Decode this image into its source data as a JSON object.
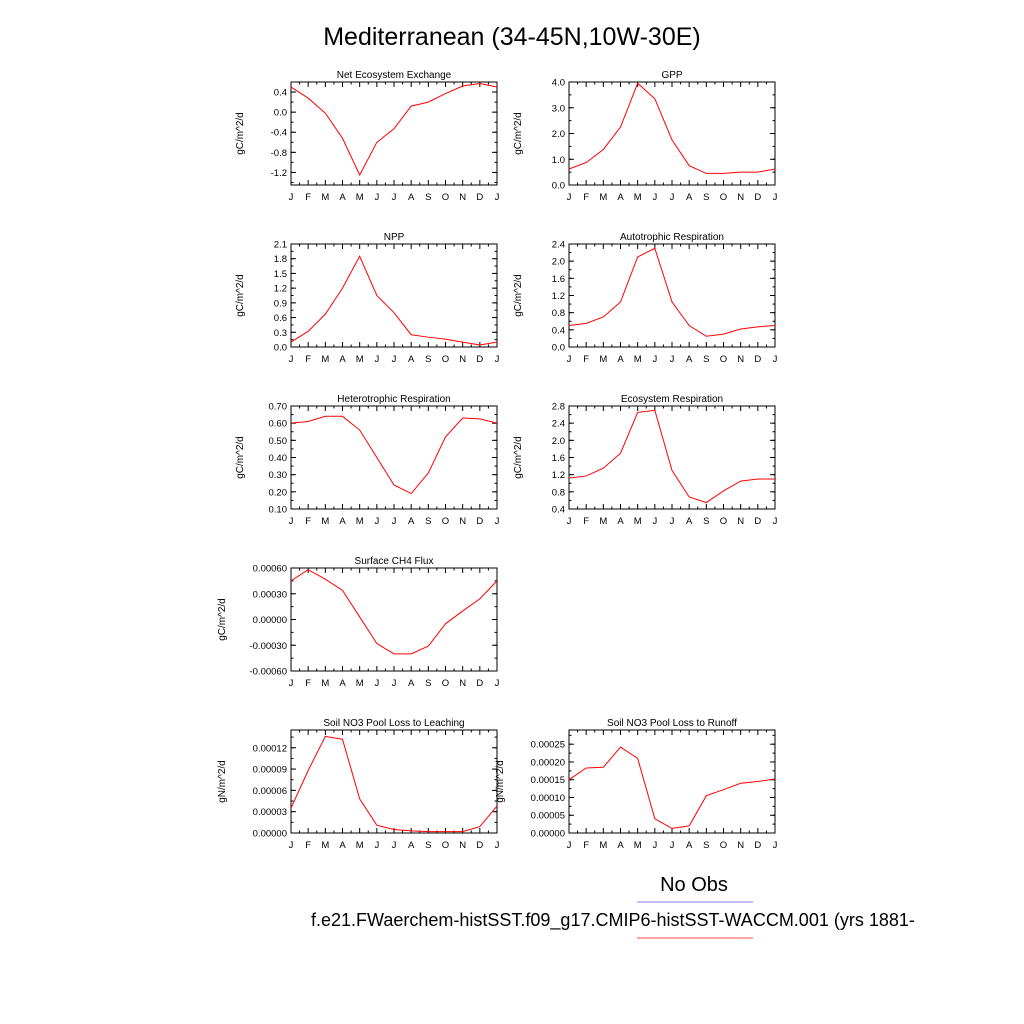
{
  "title": "Mediterranean (34-45N,10W-30E)",
  "legend": {
    "label": "No Obs",
    "obs_color": "#7b7bff",
    "model_color": "#ff4a4a"
  },
  "case_name": "f.e21.FWaerchem-histSST.f09_g17.CMIP6-histSST-WACCM.001 (yrs 1881-",
  "colors": {
    "line": "#ff0000",
    "axis": "#000000"
  },
  "chart_data": [
    {
      "type": "line",
      "title": "Net Ecosystem Exchange",
      "ylabel": "gC/m^2/d",
      "categories": [
        "J",
        "F",
        "M",
        "A",
        "M",
        "J",
        "J",
        "A",
        "S",
        "O",
        "N",
        "D",
        "J"
      ],
      "ylim": [
        -1.45,
        0.6
      ],
      "yticks": [
        -1.2,
        -0.8,
        -0.4,
        0.0,
        0.4
      ],
      "ytick_labels": [
        "-1.2",
        "-0.8",
        "-0.4",
        "0.0",
        "0.4"
      ],
      "series": [
        {
          "values": [
            0.5,
            0.28,
            -0.02,
            -0.52,
            -1.25,
            -0.6,
            -0.33,
            0.12,
            0.2,
            0.37,
            0.52,
            0.57,
            0.5
          ]
        }
      ]
    },
    {
      "type": "line",
      "title": "GPP",
      "ylabel": "gC/m^2/d",
      "categories": [
        "J",
        "F",
        "M",
        "A",
        "M",
        "J",
        "J",
        "A",
        "S",
        "O",
        "N",
        "D",
        "J"
      ],
      "ylim": [
        0.0,
        4.0
      ],
      "yticks": [
        0.0,
        1.0,
        2.0,
        3.0,
        4.0
      ],
      "ytick_labels": [
        "0.0",
        "1.0",
        "2.0",
        "3.0",
        "4.0"
      ],
      "series": [
        {
          "values": [
            0.62,
            0.87,
            1.38,
            2.25,
            3.95,
            3.35,
            1.75,
            0.75,
            0.45,
            0.45,
            0.5,
            0.5,
            0.62
          ]
        }
      ]
    },
    {
      "type": "line",
      "title": "NPP",
      "ylabel": "gC/m^2/d",
      "categories": [
        "J",
        "F",
        "M",
        "A",
        "M",
        "J",
        "J",
        "A",
        "S",
        "O",
        "N",
        "D",
        "J"
      ],
      "ylim": [
        0.0,
        2.1
      ],
      "yticks": [
        0.0,
        0.3,
        0.6,
        0.9,
        1.2,
        1.5,
        1.8,
        2.1
      ],
      "ytick_labels": [
        "0.0",
        "0.3",
        "0.6",
        "0.9",
        "1.2",
        "1.5",
        "1.8",
        "2.1"
      ],
      "series": [
        {
          "values": [
            0.1,
            0.32,
            0.67,
            1.2,
            1.85,
            1.05,
            0.7,
            0.25,
            0.2,
            0.16,
            0.1,
            0.04,
            0.1
          ]
        }
      ]
    },
    {
      "type": "line",
      "title": "Autotrophic Respiration",
      "ylabel": "gC/m^2/d",
      "categories": [
        "J",
        "F",
        "M",
        "A",
        "M",
        "J",
        "J",
        "A",
        "S",
        "O",
        "N",
        "D",
        "J"
      ],
      "ylim": [
        0.0,
        2.4
      ],
      "yticks": [
        0.0,
        0.4,
        0.8,
        1.2,
        1.6,
        2.0,
        2.4
      ],
      "ytick_labels": [
        "0.0",
        "0.4",
        "0.8",
        "1.2",
        "1.6",
        "2.0",
        "2.4"
      ],
      "series": [
        {
          "values": [
            0.5,
            0.55,
            0.7,
            1.05,
            2.1,
            2.3,
            1.05,
            0.5,
            0.25,
            0.3,
            0.42,
            0.47,
            0.5
          ]
        }
      ]
    },
    {
      "type": "line",
      "title": "Heterotrophic Respiration",
      "ylabel": "gC/m^2/d",
      "categories": [
        "J",
        "F",
        "M",
        "A",
        "M",
        "J",
        "J",
        "A",
        "S",
        "O",
        "N",
        "D",
        "J"
      ],
      "ylim": [
        0.1,
        0.7
      ],
      "yticks": [
        0.1,
        0.2,
        0.3,
        0.4,
        0.5,
        0.6,
        0.7
      ],
      "ytick_labels": [
        "0.10",
        "0.20",
        "0.30",
        "0.40",
        "0.50",
        "0.60",
        "0.70"
      ],
      "series": [
        {
          "values": [
            0.6,
            0.61,
            0.64,
            0.64,
            0.56,
            0.4,
            0.24,
            0.19,
            0.31,
            0.52,
            0.63,
            0.625,
            0.6
          ]
        }
      ]
    },
    {
      "type": "line",
      "title": "Ecosystem Respiration",
      "ylabel": "gC/m^2/d",
      "categories": [
        "J",
        "F",
        "M",
        "A",
        "M",
        "J",
        "J",
        "A",
        "S",
        "O",
        "N",
        "D",
        "J"
      ],
      "ylim": [
        0.4,
        2.8
      ],
      "yticks": [
        0.4,
        0.8,
        1.2,
        1.6,
        2.0,
        2.4,
        2.8
      ],
      "ytick_labels": [
        "0.4",
        "0.8",
        "1.2",
        "1.6",
        "2.0",
        "2.4",
        "2.8"
      ],
      "series": [
        {
          "values": [
            1.12,
            1.17,
            1.35,
            1.7,
            2.65,
            2.7,
            1.3,
            0.68,
            0.55,
            0.82,
            1.05,
            1.1,
            1.1
          ]
        }
      ]
    },
    {
      "type": "line",
      "title": "Surface CH4 Flux",
      "ylabel": "gC/m^2/d",
      "categories": [
        "J",
        "F",
        "M",
        "A",
        "M",
        "J",
        "J",
        "A",
        "S",
        "O",
        "N",
        "D",
        "J"
      ],
      "ylim": [
        -0.0006,
        0.0006
      ],
      "yticks": [
        -0.0006,
        -0.0003,
        0.0,
        0.0003,
        0.0006
      ],
      "ytick_labels": [
        "-0.00060",
        "-0.00030",
        "0.00000",
        "0.00030",
        "0.00060"
      ],
      "series": [
        {
          "values": [
            0.00045,
            0.00058,
            0.00047,
            0.00034,
            3e-05,
            -0.00028,
            -0.0004,
            -0.0004,
            -0.00031,
            -5e-05,
            0.0001,
            0.00024,
            0.00045
          ]
        }
      ]
    },
    {
      "type": "line",
      "title": "Soil NO3 Pool Loss to Leaching",
      "ylabel": "gN/m^2/d",
      "categories": [
        "J",
        "F",
        "M",
        "A",
        "M",
        "J",
        "J",
        "A",
        "S",
        "O",
        "N",
        "D",
        "J"
      ],
      "ylim": [
        0.0,
        0.000145
      ],
      "yticks": [
        0.0,
        3e-05,
        6e-05,
        9e-05,
        0.00012
      ],
      "ytick_labels": [
        "0.00000",
        "0.00003",
        "0.00006",
        "0.00009",
        "0.00012"
      ],
      "series": [
        {
          "values": [
            3.5e-05,
            8.8e-05,
            0.000136,
            0.000132,
            4.8e-05,
            1.1e-05,
            5e-06,
            3e-06,
            2e-06,
            2e-06,
            2e-06,
            9e-06,
            3.8e-05
          ]
        }
      ]
    },
    {
      "type": "line",
      "title": "Soil NO3 Pool Loss to Runoff",
      "ylabel": "gN/m^2/d",
      "categories": [
        "J",
        "F",
        "M",
        "A",
        "M",
        "J",
        "J",
        "A",
        "S",
        "O",
        "N",
        "D",
        "J"
      ],
      "ylim": [
        0.0,
        0.00029
      ],
      "yticks": [
        0.0,
        5e-05,
        0.0001,
        0.00015,
        0.0002,
        0.00025
      ],
      "ytick_labels": [
        "0.00000",
        "0.00005",
        "0.00010",
        "0.00015",
        "0.00020",
        "0.00025"
      ],
      "series": [
        {
          "values": [
            0.00015,
            0.000183,
            0.000185,
            0.000242,
            0.00021,
            4e-05,
            1.3e-05,
            2e-05,
            0.000105,
            0.000122,
            0.00014,
            0.000145,
            0.000152
          ]
        }
      ]
    }
  ]
}
